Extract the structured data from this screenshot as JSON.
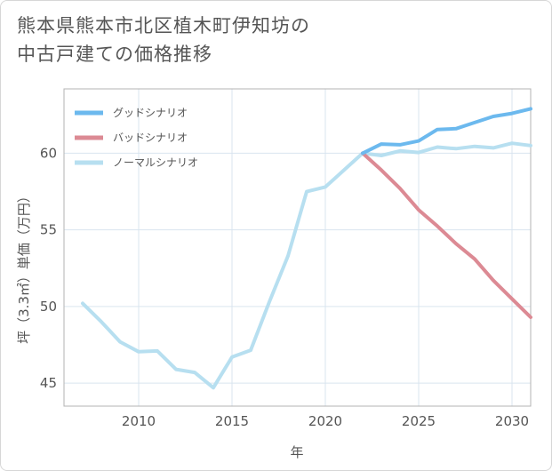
{
  "title_lines": [
    "熊本県熊本市北区植木町伊知坊の",
    "中古戸建ての価格推移"
  ],
  "chart_data": {
    "type": "line",
    "title": "熊本県熊本市北区植木町伊知坊の中古戸建ての価格推移",
    "xlabel": "年",
    "ylabel": "坪（3.3㎡）単価（万円）",
    "xlim": [
      2006,
      2031
    ],
    "ylim": [
      43.5,
      64.2
    ],
    "xticks": [
      2010,
      2015,
      2020,
      2025,
      2030
    ],
    "yticks": [
      45,
      50,
      55,
      60
    ],
    "grid": true,
    "legend": "top-left",
    "series": [
      {
        "name": "グッドシナリオ",
        "color": "#6cb9ee",
        "x": [
          2022,
          2023,
          2024,
          2025,
          2026,
          2027,
          2028,
          2029,
          2030,
          2031
        ],
        "y": [
          60.0,
          60.6,
          60.55,
          60.8,
          61.55,
          61.6,
          62.0,
          62.4,
          62.6,
          62.9
        ]
      },
      {
        "name": "バッドシナリオ",
        "color": "#dc8a94",
        "x": [
          2022,
          2023,
          2024,
          2025,
          2026,
          2027,
          2028,
          2029,
          2030,
          2031
        ],
        "y": [
          60.0,
          58.9,
          57.7,
          56.3,
          55.25,
          54.1,
          53.1,
          51.7,
          50.5,
          49.3
        ]
      },
      {
        "name": "ノーマルシナリオ",
        "color": "#b7dff0",
        "x": [
          2007,
          2008,
          2009,
          2010,
          2011,
          2012,
          2013,
          2014,
          2015,
          2016,
          2017,
          2018,
          2019,
          2020,
          2021,
          2022,
          2023,
          2024,
          2025,
          2026,
          2027,
          2028,
          2029,
          2030,
          2031
        ],
        "y": [
          50.2,
          49.0,
          47.7,
          47.05,
          47.1,
          45.9,
          45.7,
          44.7,
          46.7,
          47.15,
          50.3,
          53.3,
          57.5,
          57.8,
          58.9,
          60.0,
          59.85,
          60.15,
          60.05,
          60.4,
          60.3,
          60.45,
          60.35,
          60.65,
          60.5
        ]
      }
    ]
  }
}
